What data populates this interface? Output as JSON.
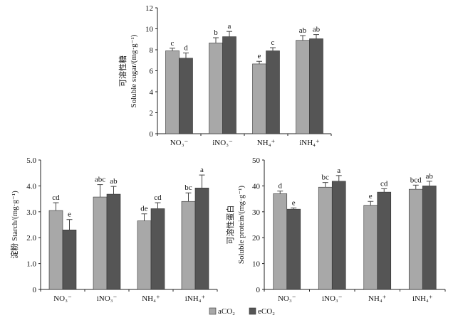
{
  "colors": {
    "aCO2": "#a8a8a8",
    "eCO2": "#555555",
    "axis": "#222222"
  },
  "legend": {
    "position": "bottom-center",
    "items": [
      {
        "label": "aCO₂",
        "key": "aCO2"
      },
      {
        "label": "eCO₂",
        "key": "eCO2"
      }
    ]
  },
  "chart_data": [
    {
      "type": "bar",
      "ylabel_cn": "可溶性糖",
      "ylabel": "Soluble sugar/(mg·g⁻¹)",
      "ylim": [
        0,
        12
      ],
      "yticks": [
        "0",
        "2",
        "4",
        "6",
        "8",
        "10",
        "12"
      ],
      "yticks_values": [
        0,
        2,
        4,
        6,
        8,
        10,
        12
      ],
      "categories": [
        "NO₃⁻",
        "iNO₃⁻",
        "NH₄⁺",
        "iNH₄⁺"
      ],
      "series": [
        {
          "name": "aCO₂",
          "values": [
            7.9,
            8.65,
            6.65,
            8.9
          ],
          "errors": [
            0.25,
            0.5,
            0.25,
            0.45
          ],
          "letters": [
            "c",
            "b",
            "e",
            "ab"
          ]
        },
        {
          "name": "eCO₂",
          "values": [
            7.2,
            9.25,
            7.9,
            9.05
          ],
          "errors": [
            0.5,
            0.5,
            0.3,
            0.4
          ],
          "letters": [
            "d",
            "a",
            "c",
            "ab"
          ]
        }
      ]
    },
    {
      "type": "bar",
      "ylabel_cn": "淀粉",
      "ylabel": "Starch/(mg·g⁻¹)",
      "ylim": [
        0,
        5
      ],
      "yticks": [
        "0",
        "1.0",
        "2.0",
        "3.0",
        "4.0",
        "5.0"
      ],
      "yticks_values": [
        0,
        1,
        2,
        3,
        4,
        5
      ],
      "categories": [
        "NO₃⁻",
        "iNO₃⁻",
        "NH₄⁺",
        "iNH₄⁺"
      ],
      "series": [
        {
          "name": "aCO₂",
          "values": [
            3.05,
            3.57,
            2.65,
            3.4
          ],
          "errors": [
            0.3,
            0.48,
            0.27,
            0.33
          ],
          "letters": [
            "cd",
            "abc",
            "de",
            "bc"
          ]
        },
        {
          "name": "eCO₂",
          "values": [
            2.3,
            3.68,
            3.12,
            3.92
          ],
          "errors": [
            0.4,
            0.3,
            0.23,
            0.5
          ],
          "letters": [
            "e",
            "ab",
            "cd",
            "a"
          ]
        }
      ]
    },
    {
      "type": "bar",
      "ylabel_cn": "可溶性蛋白",
      "ylabel": "Soluble protein/(mg·g⁻¹)",
      "ylim": [
        0,
        50
      ],
      "yticks": [
        "0",
        "10",
        "20",
        "30",
        "40",
        "50"
      ],
      "yticks_values": [
        0,
        10,
        20,
        30,
        40,
        50
      ],
      "categories": [
        "NO₃⁻",
        "iNO₃⁻",
        "NH₄⁺",
        "iNH₄⁺"
      ],
      "series": [
        {
          "name": "aCO₂",
          "values": [
            37,
            39.5,
            32.5,
            38.7
          ],
          "errors": [
            1.0,
            1.8,
            1.5,
            1.6
          ],
          "letters": [
            "d",
            "bc",
            "e",
            "bcd"
          ]
        },
        {
          "name": "eCO₂",
          "values": [
            31,
            41.8,
            37.6,
            40
          ],
          "errors": [
            0.5,
            2.2,
            1.3,
            1.8
          ],
          "letters": [
            "e",
            "a",
            "cd",
            "ab"
          ]
        }
      ]
    }
  ]
}
